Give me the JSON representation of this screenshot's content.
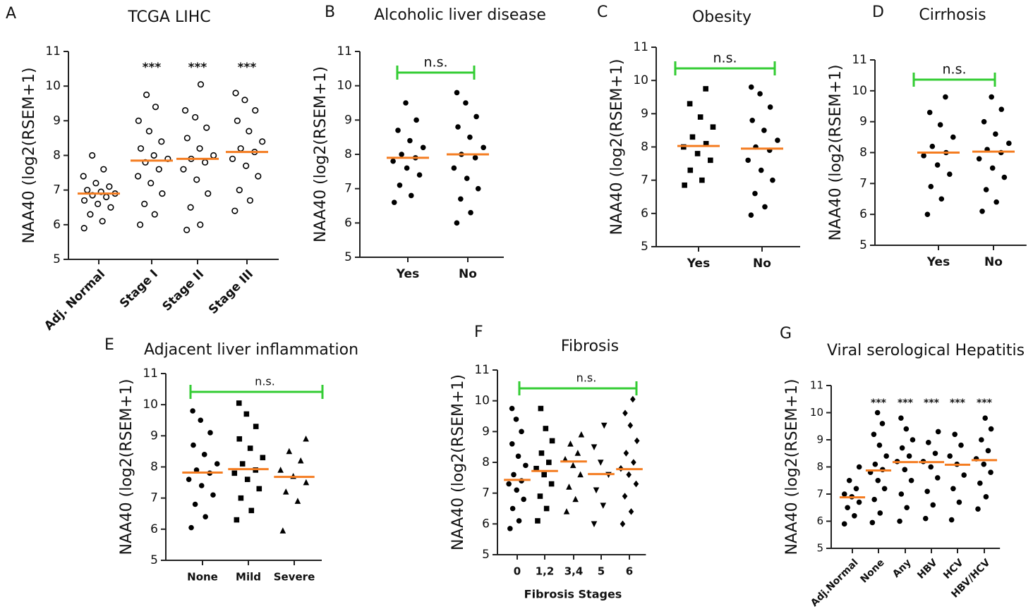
{
  "chart_data": [
    {
      "type": "strip",
      "panel": "A",
      "title": "TCGA LIHC",
      "ylabel": "NAA40 (log2(RSEM+1)",
      "ylim": [
        5,
        11
      ],
      "yticks": [
        5,
        6,
        7,
        8,
        9,
        10,
        11
      ],
      "categories": [
        "Adj. Normal",
        "Stage I",
        "Stage II",
        "Stage III"
      ],
      "markers": [
        "open-circle",
        "open-circle",
        "open-circle",
        "open-circle"
      ],
      "point_color": "#000000",
      "median_color": "#f47c20",
      "significance": [
        null,
        "***",
        "***",
        "***"
      ],
      "medians": [
        6.9,
        7.85,
        7.9,
        8.1
      ],
      "values": [
        [
          5.9,
          6.1,
          6.3,
          6.5,
          6.6,
          6.7,
          6.8,
          6.85,
          6.9,
          6.95,
          7.0,
          7.1,
          7.2,
          7.4,
          7.6,
          8.0
        ],
        [
          6.0,
          6.3,
          6.6,
          6.9,
          7.2,
          7.4,
          7.6,
          7.8,
          7.9,
          8.0,
          8.2,
          8.4,
          8.7,
          9.0,
          9.4,
          9.75
        ],
        [
          5.85,
          6.0,
          6.5,
          6.9,
          7.3,
          7.6,
          7.8,
          7.9,
          8.0,
          8.2,
          8.5,
          8.8,
          9.1,
          9.3,
          10.05
        ],
        [
          6.4,
          6.7,
          7.0,
          7.4,
          7.7,
          7.9,
          8.1,
          8.2,
          8.4,
          8.7,
          9.0,
          9.3,
          9.6,
          9.8
        ]
      ]
    },
    {
      "type": "strip",
      "panel": "B",
      "title": "Alcoholic liver disease",
      "ylabel": "NAA40 (log2(RSEM+1)",
      "ylim": [
        5,
        11
      ],
      "yticks": [
        5,
        6,
        7,
        8,
        9,
        10,
        11
      ],
      "categories": [
        "Yes",
        "No"
      ],
      "markers": [
        "circle",
        "circle"
      ],
      "point_color": "#000000",
      "median_color": "#f47c20",
      "bracket_label": "n.s.",
      "bracket_color": "#33cc33",
      "medians": [
        7.9,
        8.0
      ],
      "values": [
        [
          6.6,
          6.8,
          7.1,
          7.4,
          7.6,
          7.8,
          7.9,
          8.0,
          8.2,
          8.4,
          8.7,
          9.0,
          9.5
        ],
        [
          6.0,
          6.3,
          6.7,
          7.0,
          7.3,
          7.6,
          7.9,
          8.0,
          8.2,
          8.5,
          8.8,
          9.1,
          9.5,
          9.8
        ]
      ]
    },
    {
      "type": "strip",
      "panel": "C",
      "title": "Obesity",
      "ylabel": "NAA40 (log2(RSEM+1)",
      "ylim": [
        5,
        11
      ],
      "yticks": [
        5,
        6,
        7,
        8,
        9,
        10,
        11
      ],
      "categories": [
        "Yes",
        "No"
      ],
      "markers": [
        "square",
        "circle"
      ],
      "point_color": "#000000",
      "median_color": "#f47c20",
      "bracket_label": "n.s.",
      "bracket_color": "#33cc33",
      "medians": [
        8.03,
        7.95
      ],
      "values": [
        [
          6.85,
          7.0,
          7.3,
          7.6,
          7.8,
          8.0,
          8.1,
          8.3,
          8.6,
          8.9,
          9.3,
          9.75
        ],
        [
          5.95,
          6.2,
          6.6,
          7.0,
          7.3,
          7.6,
          7.9,
          8.0,
          8.2,
          8.5,
          8.8,
          9.2,
          9.6,
          9.8
        ]
      ]
    },
    {
      "type": "strip",
      "panel": "D",
      "title": "Cirrhosis",
      "ylabel": "NAA40 (log2(RSEM+1)",
      "ylim": [
        5,
        11
      ],
      "yticks": [
        5,
        6,
        7,
        8,
        9,
        10,
        11
      ],
      "categories": [
        "Yes",
        "No"
      ],
      "markers": [
        "circle",
        "circle"
      ],
      "point_color": "#000000",
      "median_color": "#f47c20",
      "bracket_label": "n.s.",
      "bracket_color": "#33cc33",
      "medians": [
        8.0,
        8.03
      ],
      "values": [
        [
          6.0,
          6.5,
          6.9,
          7.3,
          7.6,
          7.9,
          8.0,
          8.2,
          8.5,
          8.9,
          9.3,
          9.8
        ],
        [
          6.1,
          6.4,
          6.8,
          7.2,
          7.5,
          7.8,
          8.0,
          8.1,
          8.3,
          8.6,
          9.0,
          9.4,
          9.8
        ]
      ]
    },
    {
      "type": "strip",
      "panel": "E",
      "title": "Adjacent liver inflammation",
      "ylabel": "NAA40 (log2(RSEM+1)",
      "ylim": [
        5,
        11
      ],
      "yticks": [
        5,
        6,
        7,
        8,
        9,
        10,
        11
      ],
      "categories": [
        "None",
        "Mild",
        "Severe"
      ],
      "markers": [
        "circle",
        "square",
        "triangle"
      ],
      "point_color": "#000000",
      "median_color": "#f47c20",
      "bracket_label": "n.s.",
      "bracket_color": "#33cc33",
      "medians": [
        7.82,
        7.93,
        7.68
      ],
      "values": [
        [
          6.05,
          6.4,
          6.8,
          7.1,
          7.4,
          7.6,
          7.8,
          7.9,
          8.1,
          8.4,
          8.7,
          9.1,
          9.5,
          9.8
        ],
        [
          6.3,
          6.6,
          7.0,
          7.3,
          7.6,
          7.8,
          7.9,
          8.1,
          8.3,
          8.6,
          8.9,
          9.3,
          9.7,
          10.05
        ],
        [
          5.95,
          6.9,
          7.2,
          7.5,
          7.7,
          7.9,
          8.2,
          8.5,
          8.9
        ]
      ]
    },
    {
      "type": "strip",
      "panel": "F",
      "title": "Fibrosis",
      "ylabel": "NAA40 (log2(RSEM+1)",
      "xlabel": "Fibrosis Stages",
      "ylim": [
        5,
        11
      ],
      "yticks": [
        5,
        6,
        7,
        8,
        9,
        10,
        11
      ],
      "categories": [
        "0",
        "1,2",
        "3,4",
        "5",
        "6"
      ],
      "markers": [
        "circle",
        "square",
        "triangle",
        "triangle-down",
        "diamond"
      ],
      "point_color": "#000000",
      "median_color": "#f47c20",
      "bracket_label": "n.s.",
      "bracket_color": "#33cc33",
      "medians": [
        7.43,
        7.72,
        8.03,
        7.62,
        7.78
      ],
      "values": [
        [
          5.85,
          6.1,
          6.5,
          6.8,
          7.1,
          7.3,
          7.4,
          7.6,
          7.9,
          8.2,
          8.6,
          9.0,
          9.4,
          9.75
        ],
        [
          6.1,
          6.5,
          6.9,
          7.3,
          7.6,
          7.8,
          8.0,
          8.3,
          8.7,
          9.1,
          9.75
        ],
        [
          6.4,
          6.8,
          7.2,
          7.6,
          7.9,
          8.1,
          8.3,
          8.6,
          8.9
        ],
        [
          6.0,
          6.6,
          7.1,
          7.6,
          8.0,
          8.5,
          9.2
        ],
        [
          6.0,
          6.4,
          6.9,
          7.3,
          7.6,
          7.8,
          8.0,
          8.3,
          8.7,
          9.2,
          9.6,
          10.05
        ]
      ]
    },
    {
      "type": "strip",
      "panel": "G",
      "title": "Viral serological Hepatitis",
      "ylabel": "NAA40 (log2(RSEM+1)",
      "ylim": [
        5,
        11
      ],
      "yticks": [
        5,
        6,
        7,
        8,
        9,
        10,
        11
      ],
      "categories": [
        "Adj.Normal",
        "None",
        "Any",
        "HBV",
        "HCV",
        "HBV/HCV"
      ],
      "markers": [
        "circle",
        "circle",
        "circle",
        "circle",
        "circle",
        "circle"
      ],
      "point_color": "#000000",
      "median_color": "#f47c20",
      "significance": [
        null,
        "***",
        "***",
        "***",
        "***",
        "***"
      ],
      "medians": [
        6.88,
        7.87,
        8.18,
        8.18,
        8.08,
        8.25
      ],
      "values": [
        [
          5.9,
          6.2,
          6.5,
          6.7,
          6.9,
          7.0,
          7.2,
          7.5,
          8.0
        ],
        [
          5.95,
          6.3,
          6.8,
          7.2,
          7.5,
          7.8,
          7.9,
          8.1,
          8.4,
          8.8,
          9.2,
          9.6,
          10.0
        ],
        [
          6.0,
          6.5,
          7.0,
          7.5,
          7.9,
          8.2,
          8.4,
          8.7,
          9.0,
          9.4,
          9.8
        ],
        [
          6.1,
          6.6,
          7.1,
          7.6,
          8.0,
          8.2,
          8.5,
          8.9,
          9.3
        ],
        [
          6.05,
          6.7,
          7.2,
          7.7,
          8.1,
          8.4,
          8.8,
          9.2
        ],
        [
          6.45,
          6.9,
          7.4,
          7.8,
          8.1,
          8.3,
          8.6,
          9.0,
          9.4,
          9.8
        ]
      ]
    }
  ]
}
